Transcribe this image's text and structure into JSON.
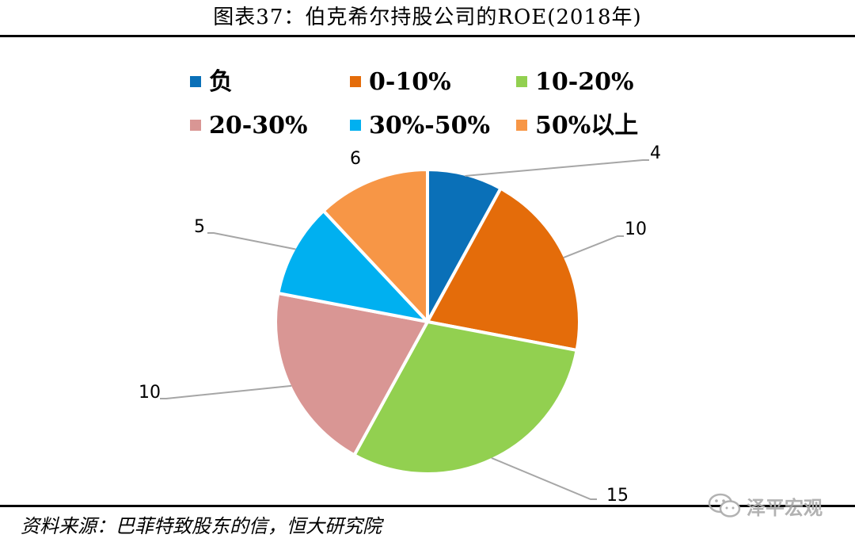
{
  "figure": {
    "title": "图表37：伯克希尔持股公司的ROE(2018年)",
    "source": "资料来源：巴菲特致股东的信，恒大研究院",
    "watermark": "泽平宏观"
  },
  "chart_data": {
    "type": "pie",
    "title": "",
    "slices": [
      {
        "label": "负",
        "value": 4,
        "color": "#0a70b8"
      },
      {
        "label": "0-10%",
        "value": 10,
        "color": "#e46c0a"
      },
      {
        "label": "10-20%",
        "value": 15,
        "color": "#92d050"
      },
      {
        "label": "20-30%",
        "value": 10,
        "color": "#d99694"
      },
      {
        "label": "30%-50%",
        "value": 5,
        "color": "#00b0f0"
      },
      {
        "label": "50%以上",
        "value": 6,
        "color": "#f79646"
      }
    ],
    "legend_position": "top",
    "start_angle": "12 o'clock",
    "direction": "clockwise",
    "data_labels": "outside with leader lines",
    "slice_border_color": "#ffffff"
  }
}
